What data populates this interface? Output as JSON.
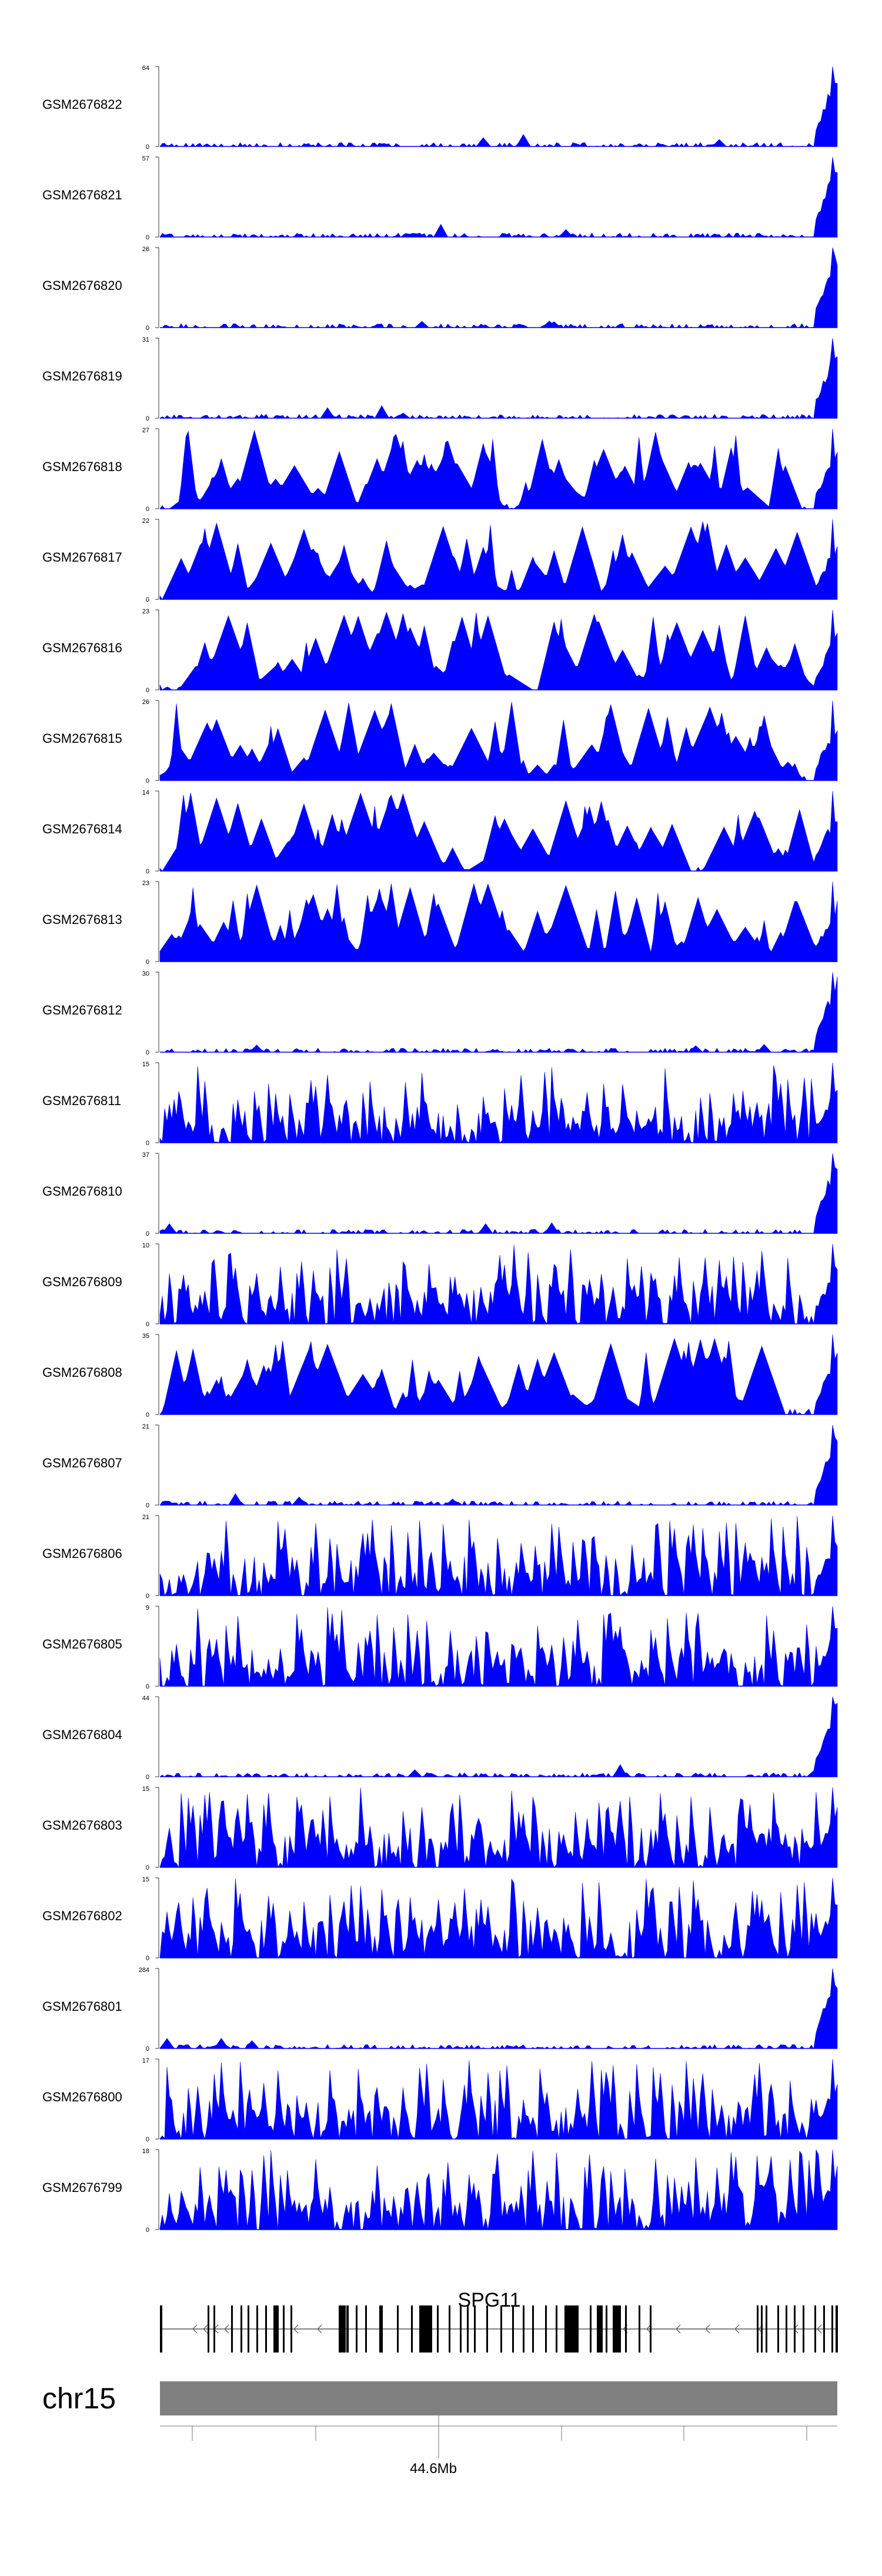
{
  "chart_data": {
    "type": "area",
    "chromosome": "chr15",
    "gene": {
      "name": "SPG11",
      "strand": "-"
    },
    "position_tick_label": "44.6Mb",
    "fill_color": "#0000FF",
    "gene_color": "#000000",
    "ideogram_color": "#808080",
    "tracks": [
      {
        "name": "GSM2676822",
        "ymax": "64",
        "ymin": "0",
        "profile": "flat"
      },
      {
        "name": "GSM2676821",
        "ymax": "57",
        "ymin": "0",
        "profile": "flat"
      },
      {
        "name": "GSM2676820",
        "ymax": "26",
        "ymin": "0",
        "profile": "flat"
      },
      {
        "name": "GSM2676819",
        "ymax": "31",
        "ymin": "0",
        "profile": "flat"
      },
      {
        "name": "GSM2676818",
        "ymax": "27",
        "ymin": "0",
        "profile": "spiky"
      },
      {
        "name": "GSM2676817",
        "ymax": "22",
        "ymin": "0",
        "profile": "spiky"
      },
      {
        "name": "GSM2676816",
        "ymax": "23",
        "ymin": "0",
        "profile": "spiky"
      },
      {
        "name": "GSM2676815",
        "ymax": "26",
        "ymin": "0",
        "profile": "spiky"
      },
      {
        "name": "GSM2676814",
        "ymax": "14",
        "ymin": "0",
        "profile": "spiky"
      },
      {
        "name": "GSM2676813",
        "ymax": "23",
        "ymin": "0",
        "profile": "spiky"
      },
      {
        "name": "GSM2676812",
        "ymax": "30",
        "ymin": "0",
        "profile": "flat"
      },
      {
        "name": "GSM2676811",
        "ymax": "15",
        "ymin": "0",
        "profile": "dense"
      },
      {
        "name": "GSM2676810",
        "ymax": "37",
        "ymin": "0",
        "profile": "flat"
      },
      {
        "name": "GSM2676809",
        "ymax": "10",
        "ymin": "0",
        "profile": "dense"
      },
      {
        "name": "GSM2676808",
        "ymax": "35",
        "ymin": "0",
        "profile": "spiky"
      },
      {
        "name": "GSM2676807",
        "ymax": "21",
        "ymin": "0",
        "profile": "flat"
      },
      {
        "name": "GSM2676806",
        "ymax": "21",
        "ymin": "0",
        "profile": "dense"
      },
      {
        "name": "GSM2676805",
        "ymax": "9",
        "ymin": "0",
        "profile": "dense"
      },
      {
        "name": "GSM2676804",
        "ymax": "44",
        "ymin": "0",
        "profile": "flat"
      },
      {
        "name": "GSM2676803",
        "ymax": "15",
        "ymin": "0",
        "profile": "dense"
      },
      {
        "name": "GSM2676802",
        "ymax": "15",
        "ymin": "0",
        "profile": "dense"
      },
      {
        "name": "GSM2676801",
        "ymax": "284",
        "ymin": "0",
        "profile": "flat"
      },
      {
        "name": "GSM2676800",
        "ymax": "17",
        "ymin": "0",
        "profile": "dense"
      },
      {
        "name": "GSM2676799",
        "ymax": "18",
        "ymin": "0",
        "profile": "dense"
      }
    ]
  }
}
